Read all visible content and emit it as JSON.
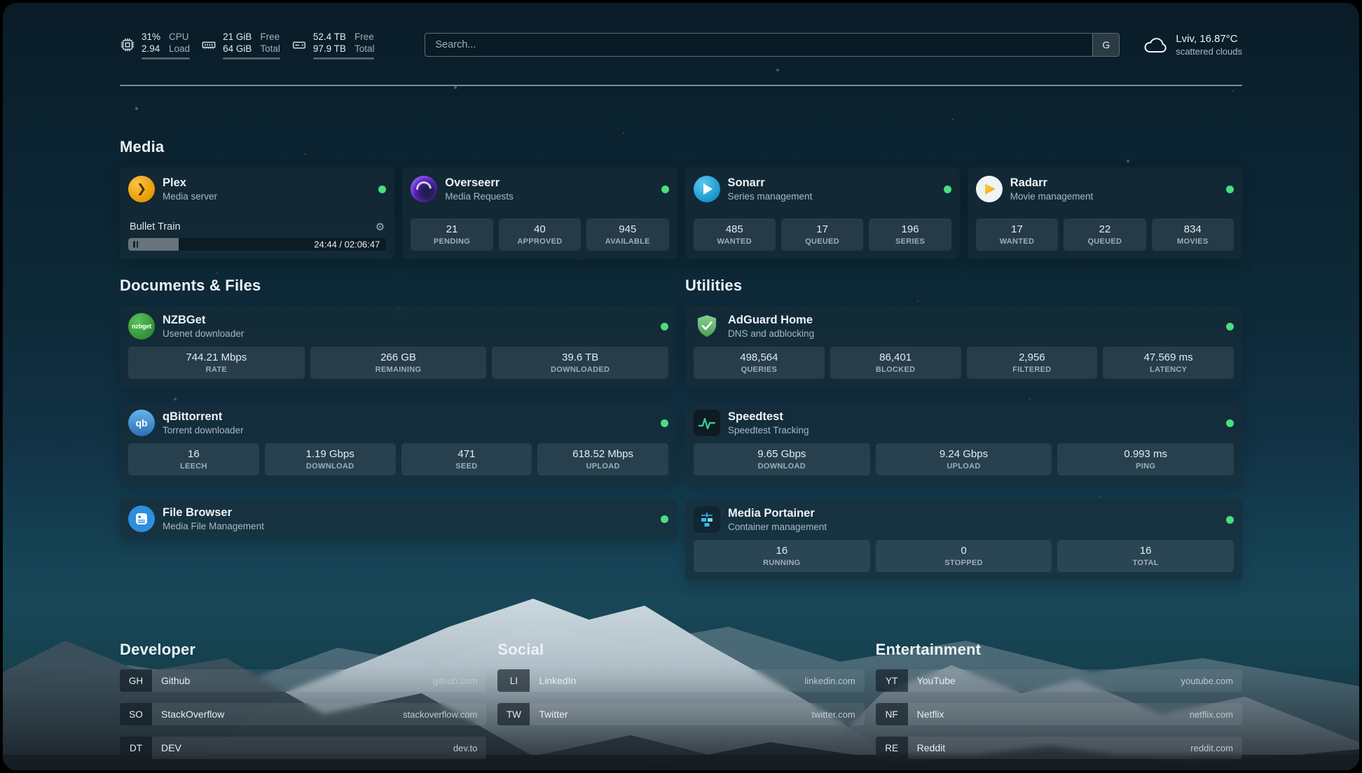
{
  "topbar": {
    "cpu": {
      "value": "31%",
      "sub": "2.94",
      "label1": "CPU",
      "label2": "Load"
    },
    "memory": {
      "value": "21 GiB",
      "sub": "64 GiB",
      "label1": "Free",
      "label2": "Total"
    },
    "disk": {
      "value": "52.4 TB",
      "sub": "97.9 TB",
      "label1": "Free",
      "label2": "Total"
    },
    "search": {
      "placeholder": "Search...",
      "button": "G"
    },
    "weather": {
      "location": "Lviv, 16.87°C",
      "condition": "scattered clouds"
    }
  },
  "headings": {
    "media": "Media",
    "documents": "Documents & Files",
    "utilities": "Utilities",
    "developer": "Developer",
    "social": "Social",
    "entertainment": "Entertainment"
  },
  "plex": {
    "title": "Plex",
    "subtitle": "Media server",
    "now_playing": "Bullet Train",
    "time": "24:44 / 02:06:47",
    "progress_percent": 19.5
  },
  "overseerr": {
    "title": "Overseerr",
    "subtitle": "Media Requests",
    "stats": [
      {
        "value": "21",
        "label": "PENDING"
      },
      {
        "value": "40",
        "label": "APPROVED"
      },
      {
        "value": "945",
        "label": "AVAILABLE"
      }
    ]
  },
  "sonarr": {
    "title": "Sonarr",
    "subtitle": "Series management",
    "stats": [
      {
        "value": "485",
        "label": "WANTED"
      },
      {
        "value": "17",
        "label": "QUEUED"
      },
      {
        "value": "196",
        "label": "SERIES"
      }
    ]
  },
  "radarr": {
    "title": "Radarr",
    "subtitle": "Movie management",
    "stats": [
      {
        "value": "17",
        "label": "WANTED"
      },
      {
        "value": "22",
        "label": "QUEUED"
      },
      {
        "value": "834",
        "label": "MOVIES"
      }
    ]
  },
  "nzbget": {
    "title": "NZBGet",
    "subtitle": "Usenet downloader",
    "icon_label": "nzbget",
    "stats": [
      {
        "value": "744.21 Mbps",
        "label": "RATE"
      },
      {
        "value": "266 GB",
        "label": "REMAINING"
      },
      {
        "value": "39.6 TB",
        "label": "DOWNLOADED"
      }
    ]
  },
  "qbittorrent": {
    "title": "qBittorrent",
    "subtitle": "Torrent downloader",
    "icon_label": "qb",
    "stats": [
      {
        "value": "16",
        "label": "LEECH"
      },
      {
        "value": "1.19 Gbps",
        "label": "DOWNLOAD"
      },
      {
        "value": "471",
        "label": "SEED"
      },
      {
        "value": "618.52 Mbps",
        "label": "UPLOAD"
      }
    ]
  },
  "filebrowser": {
    "title": "File Browser",
    "subtitle": "Media File Management"
  },
  "adguard": {
    "title": "AdGuard Home",
    "subtitle": "DNS and adblocking",
    "stats": [
      {
        "value": "498,564",
        "label": "QUERIES"
      },
      {
        "value": "86,401",
        "label": "BLOCKED"
      },
      {
        "value": "2,956",
        "label": "FILTERED"
      },
      {
        "value": "47.569 ms",
        "label": "LATENCY"
      }
    ]
  },
  "speedtest": {
    "title": "Speedtest",
    "subtitle": "Speedtest Tracking",
    "stats": [
      {
        "value": "9.65 Gbps",
        "label": "DOWNLOAD"
      },
      {
        "value": "9.24 Gbps",
        "label": "UPLOAD"
      },
      {
        "value": "0.993 ms",
        "label": "PING"
      }
    ]
  },
  "portainer": {
    "title": "Media Portainer",
    "subtitle": "Container management",
    "stats": [
      {
        "value": "16",
        "label": "RUNNING"
      },
      {
        "value": "0",
        "label": "STOPPED"
      },
      {
        "value": "16",
        "label": "TOTAL"
      }
    ]
  },
  "bookmarks": {
    "developer": [
      {
        "abbr": "GH",
        "name": "Github",
        "url": "github.com"
      },
      {
        "abbr": "SO",
        "name": "StackOverflow",
        "url": "stackoverflow.com"
      },
      {
        "abbr": "DT",
        "name": "DEV",
        "url": "dev.to"
      }
    ],
    "social": [
      {
        "abbr": "LI",
        "name": "LinkedIn",
        "url": "linkedin.com"
      },
      {
        "abbr": "TW",
        "name": "Twitter",
        "url": "twitter.com"
      }
    ],
    "entertainment": [
      {
        "abbr": "YT",
        "name": "YouTube",
        "url": "youtube.com"
      },
      {
        "abbr": "NF",
        "name": "Netflix",
        "url": "netflix.com"
      },
      {
        "abbr": "RE",
        "name": "Reddit",
        "url": "reddit.com"
      }
    ]
  },
  "colors": {
    "status_green": "#4ade80"
  }
}
